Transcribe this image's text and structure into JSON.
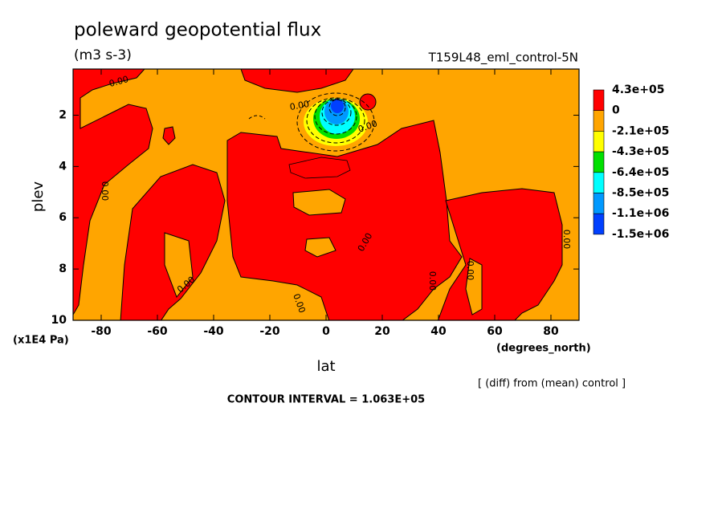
{
  "chart_data": {
    "type": "contour",
    "title": "poleward geopotential flux",
    "subtitle": "(m3 s-3)",
    "dataset": "T159L48_eml_control-5N",
    "x_label": "lat",
    "y_label": "plev",
    "x_units": "(degrees_north)",
    "y_units": "(x1E4 Pa)",
    "xlim": [
      -90,
      90
    ],
    "xticks": [
      -80,
      -60,
      -40,
      -20,
      0,
      20,
      40,
      60,
      80
    ],
    "ylim": [
      10,
      0.2
    ],
    "yticks": [
      2,
      4,
      6,
      8,
      10
    ],
    "levels": [
      {
        "value": 430000,
        "label": "4.3e+05"
      },
      0,
      {
        "value": -210000,
        "label": "-2.1e+05"
      },
      {
        "value": -430000,
        "label": "-4.3e+05"
      },
      {
        "value": -640000,
        "label": "-6.4e+05"
      },
      {
        "value": -850000,
        "label": "-8.5e+05"
      },
      {
        "value": -1100000,
        "label": "-1.1e+06"
      },
      {
        "value": -1500000,
        "label": "-1.5e+06"
      }
    ],
    "colors": [
      "#ff0000",
      "#ffa500",
      "#ffff00",
      "#00e000",
      "#00ffff",
      "#0099ff",
      "#0040ff"
    ],
    "contour_label": "0.00",
    "footnote": "[ (diff) from (mean) control ]",
    "contour_interval": "CONTOUR INTERVAL = 1.063E+05"
  }
}
